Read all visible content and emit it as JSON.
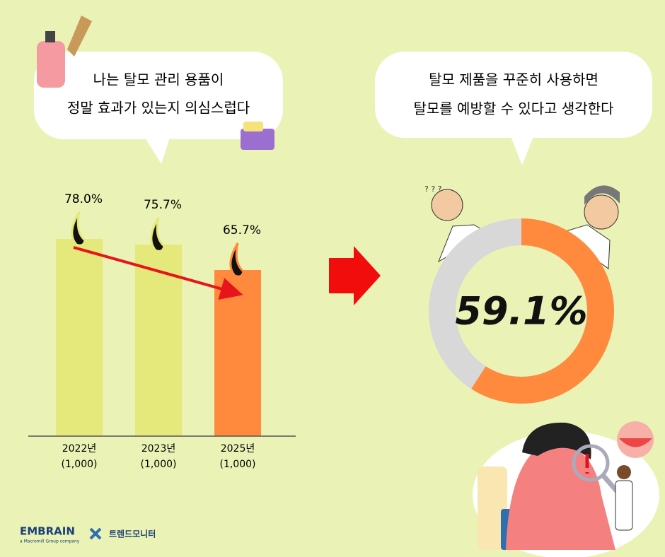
{
  "chart_data": [
    {
      "type": "bar",
      "title_lines": [
        "나는 탈모 관리 용품이",
        "정말 효과가 있는지 의심스럽다"
      ],
      "categories": [
        "2022년",
        "2023년",
        "2025년"
      ],
      "sample_sizes": [
        "(1,000)",
        "(1,000)",
        "(1,000)"
      ],
      "values": [
        78.0,
        75.7,
        65.7
      ],
      "value_labels": [
        "78.0%",
        "75.7%",
        "65.7%"
      ],
      "colors": [
        "#e5e87a",
        "#e5e87a",
        "#ff8a3d"
      ]
    },
    {
      "type": "donut",
      "title_lines": [
        "탈모 제품을 꾸준히 사용하면",
        "탈모를 예방할 수 있다고 생각한다"
      ],
      "values": [
        59.1
      ],
      "value_labels": [
        "59.1%"
      ],
      "color": "#ff8a3d",
      "track_color": "#d8d8d8"
    }
  ],
  "footer": {
    "brand": "EMBRAIN",
    "brand_sub": "a Macromill Group company",
    "partner": "트렌드모니터"
  }
}
